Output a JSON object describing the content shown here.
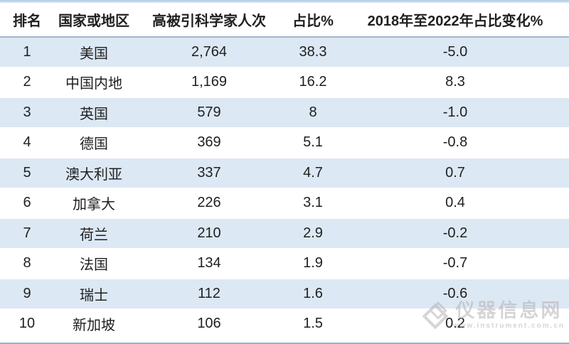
{
  "chart_data": {
    "type": "table",
    "title": "",
    "columns": [
      "排名",
      "国家或地区",
      "高被引科学家人次",
      "占比%",
      "2018年至2022年占比变化%"
    ],
    "rows": [
      [
        "1",
        "美国",
        "2,764",
        "38.3",
        "-5.0"
      ],
      [
        "2",
        "中国内地",
        "1,169",
        "16.2",
        "8.3"
      ],
      [
        "3",
        "英国",
        "579",
        "8",
        "-1.0"
      ],
      [
        "4",
        "德国",
        "369",
        "5.1",
        "-0.8"
      ],
      [
        "5",
        "澳大利亚",
        "337",
        "4.7",
        "0.7"
      ],
      [
        "6",
        "加拿大",
        "226",
        "3.1",
        "0.4"
      ],
      [
        "7",
        "荷兰",
        "210",
        "2.9",
        "-0.2"
      ],
      [
        "8",
        "法国",
        "134",
        "1.9",
        "-0.7"
      ],
      [
        "9",
        "瑞士",
        "112",
        "1.6",
        "-0.6"
      ],
      [
        "10",
        "新加坡",
        "106",
        "1.5",
        "0.2"
      ]
    ],
    "layout": {
      "striped_rows": "odd-blue",
      "grid": "off",
      "header_bold": true
    }
  },
  "watermark": {
    "text": "仪器信息网",
    "subtext": "www.instrument.com.cn"
  },
  "colors": {
    "stripe": "#dce8f4",
    "header-line": "#9fb7cd",
    "top-border-dark": "#aec8e0",
    "top-border-light": "#dfe9f3",
    "bottom-border": "#8fb4d2",
    "text-color": "#1f1f1f",
    "watermark-color": "#b3b3b3"
  }
}
